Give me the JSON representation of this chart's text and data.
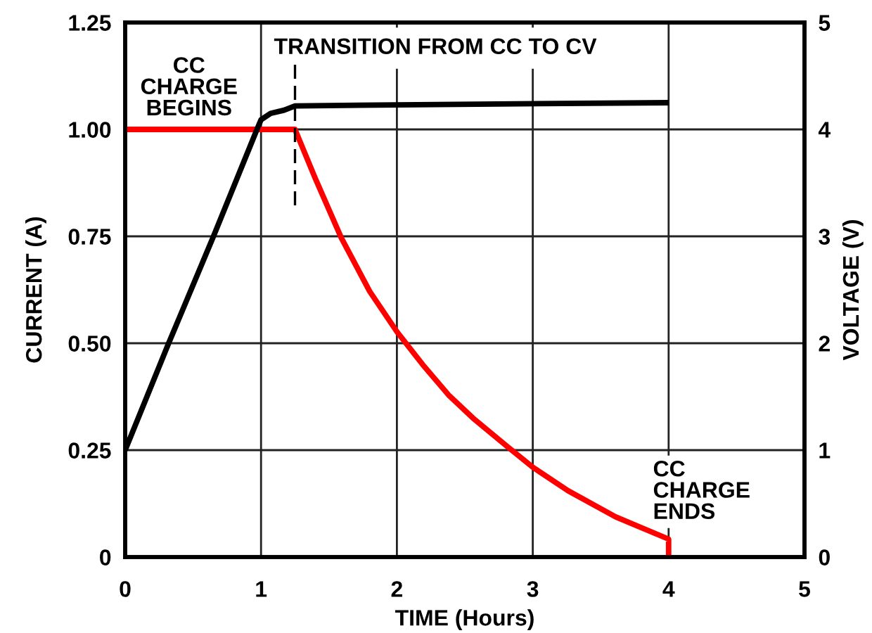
{
  "chart_data": {
    "type": "line",
    "xlabel": "TIME (Hours)",
    "ylabel": "CURRENT (A)",
    "y2label": "VOLTAGE (V)",
    "xlim": [
      0,
      5
    ],
    "xticks": [
      0,
      1,
      2,
      3,
      4,
      5
    ],
    "ylim": [
      0,
      1.25
    ],
    "yticks": [
      0,
      0.25,
      {
        "value": 0.5,
        "label": "0.50"
      },
      0.75,
      {
        "value": 1.0,
        "label": "1.00"
      },
      1.25
    ],
    "y2lim": [
      0,
      5
    ],
    "y2ticks": [
      0,
      1,
      2,
      3,
      4,
      5
    ],
    "grid": true,
    "series": [
      {
        "color": "#ff0000",
        "x": [
          0,
          1.25,
          1.4,
          1.59,
          1.8,
          2.0,
          2.19,
          2.38,
          2.56,
          2.81,
          3.0,
          3.26,
          3.61,
          4.0,
          4.0
        ],
        "values": [
          1.0,
          1.0,
          0.885,
          0.747,
          0.621,
          0.527,
          0.45,
          0.379,
          0.325,
          0.259,
          0.21,
          0.155,
          0.094,
          0.042,
          0
        ]
      },
      {
        "color": "#000000",
        "axis": "y2",
        "x": [
          0,
          0.32,
          0.65,
          0.97,
          1.0,
          1.07,
          1.17,
          1.25,
          2.0,
          4.0
        ],
        "values": [
          1.0,
          2.0,
          3.0,
          4.0,
          4.09,
          4.15,
          4.18,
          4.22,
          4.23,
          4.25
        ]
      }
    ],
    "ref_lines": [
      {
        "axis": "x",
        "value": 1.25,
        "label": "TRANSITION FROM CC TO CV",
        "color": "#000000",
        "line_style": "dashed"
      }
    ],
    "annotations": [
      "CC\nCHARGE\nBEGINS",
      "CC\nCHARGE\nENDS"
    ]
  }
}
